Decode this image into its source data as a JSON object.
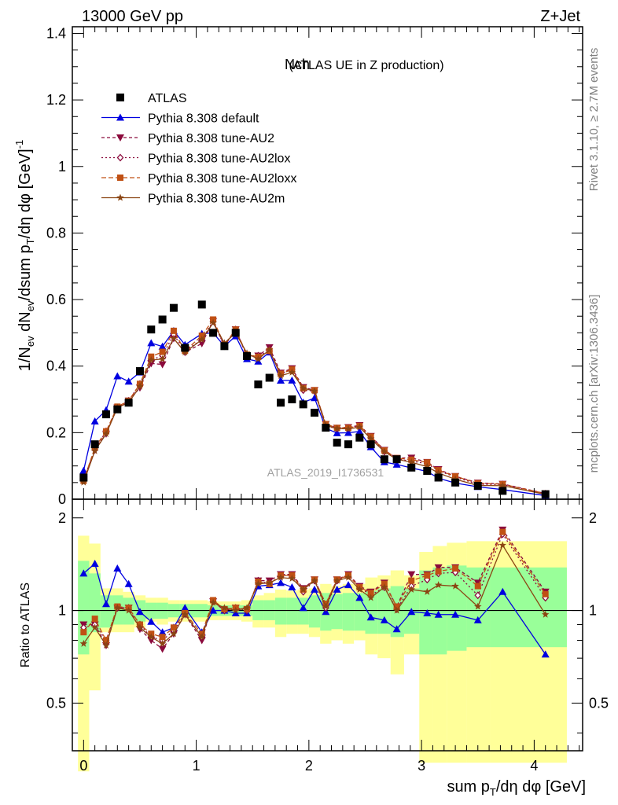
{
  "header": {
    "left": "13000 GeV pp",
    "right": "Z+Jet"
  },
  "side": {
    "top": "Rivet 3.1.10, ≥ 2.7M events",
    "bottom": "mcplots.cern.ch [arXiv:1306.3436]"
  },
  "chart_data": {
    "type": "line",
    "title_main": "Nch",
    "title_sub": "(ATLAS UE in Z production)",
    "watermark": "ATLAS_2019_I1736531",
    "xlim": [
      -0.1,
      4.43
    ],
    "ylim_main": [
      0,
      1.42
    ],
    "ylim_ratio": [
      0.35,
      2.3
    ],
    "x_ticks": [
      "0",
      "1",
      "2",
      "3",
      "4"
    ],
    "y_ticks_main": [
      "0",
      "0.2",
      "0.4",
      "0.6",
      "0.8",
      "1",
      "1.2",
      "1.4"
    ],
    "y_ticks_ratio": [
      "0.5",
      "1",
      "2"
    ],
    "axis": {
      "x_label": "sum p_T/dη dφ [GeV]",
      "x_label_parts": [
        "sum p",
        "T",
        "/dη dφ [GeV]"
      ],
      "y_label_main": "1/N_ev dN_ev/dsum p_T/dη dφ [GeV]^-1",
      "y_label_main_parts": [
        "1/N",
        "ev",
        " dN",
        "ev",
        "/dsum p",
        "T",
        "/dη dφ  [GeV]",
        "-1"
      ],
      "y_label_ratio": "Ratio to ATLAS"
    },
    "x": [
      0,
      0.1,
      0.2,
      0.3,
      0.4,
      0.5,
      0.6,
      0.7,
      0.8,
      0.9,
      1.05,
      1.15,
      1.25,
      1.35,
      1.45,
      1.55,
      1.65,
      1.75,
      1.85,
      1.95,
      2.05,
      2.15,
      2.25,
      2.35,
      2.45,
      2.55,
      2.67,
      2.78,
      2.91,
      3.05,
      3.15,
      3.3,
      3.5,
      3.72,
      4.1
    ],
    "atlas": [
      0.065,
      0.165,
      0.255,
      0.27,
      0.29,
      0.385,
      0.51,
      0.54,
      0.575,
      0.455,
      0.585,
      0.5,
      0.46,
      0.5,
      0.43,
      0.345,
      0.365,
      0.29,
      0.3,
      0.285,
      0.26,
      0.215,
      0.17,
      0.165,
      0.185,
      0.165,
      0.12,
      0.12,
      0.095,
      0.085,
      0.065,
      0.05,
      0.04,
      0.025,
      0.015
    ],
    "series": [
      {
        "name": "Pythia 8.308 default",
        "color": "#0000e0",
        "marker": "triangle",
        "dash": "",
        "ratio": [
          1.32,
          1.42,
          1.05,
          1.37,
          1.22,
          0.99,
          0.92,
          0.85,
          0.88,
          1.02,
          0.85,
          1.0,
          1.0,
          0.98,
          0.98,
          1.2,
          1.21,
          1.23,
          1.19,
          1.02,
          1.17,
          0.99,
          1.17,
          1.21,
          1.1,
          0.95,
          0.93,
          0.87,
          0.99,
          0.98,
          0.97,
          0.97,
          0.93,
          1.15,
          0.72
        ]
      },
      {
        "name": "Pythia 8.308 tune-AU2",
        "color": "#8b0a3c",
        "marker": "triangle-down",
        "dash": "4,3",
        "ratio": [
          0.9,
          0.9,
          0.77,
          1.02,
          1.02,
          0.87,
          0.8,
          0.75,
          0.84,
          0.97,
          0.8,
          1.07,
          1.0,
          1.02,
          1.0,
          1.25,
          1.25,
          1.31,
          1.31,
          1.18,
          1.26,
          1.05,
          1.26,
          1.31,
          1.2,
          1.15,
          1.23,
          1.03,
          1.31,
          1.31,
          1.38,
          1.38,
          1.23,
          1.83,
          1.15
        ]
      },
      {
        "name": "Pythia 8.308 tune-AU2lox",
        "color": "#8b0a3c",
        "marker": "diamond",
        "dash": "2,3",
        "ratio": [
          0.88,
          0.9,
          0.8,
          1.02,
          1.02,
          0.9,
          0.82,
          0.8,
          0.86,
          0.98,
          0.82,
          1.07,
          1.0,
          1.02,
          1.0,
          1.25,
          1.22,
          1.3,
          1.3,
          1.15,
          1.25,
          1.02,
          1.25,
          1.3,
          1.19,
          1.12,
          1.19,
          1.01,
          1.2,
          1.26,
          1.32,
          1.33,
          1.12,
          1.77,
          1.1
        ]
      },
      {
        "name": "Pythia 8.308 tune-AU2loxx",
        "color": "#c05014",
        "marker": "square",
        "dash": "6,3",
        "ratio": [
          0.85,
          0.94,
          0.8,
          1.03,
          1.02,
          0.9,
          0.84,
          0.82,
          0.88,
          0.98,
          0.84,
          1.08,
          1.01,
          1.02,
          1.01,
          1.24,
          1.22,
          1.3,
          1.3,
          1.17,
          1.26,
          1.05,
          1.26,
          1.3,
          1.19,
          1.14,
          1.22,
          1.03,
          1.25,
          1.3,
          1.34,
          1.37,
          1.2,
          1.8,
          1.13
        ]
      },
      {
        "name": "Pythia 8.308 tune-AU2m",
        "color": "#8b4513",
        "marker": "star",
        "dash": "",
        "ratio": [
          0.78,
          0.88,
          0.77,
          1.02,
          1.0,
          0.88,
          0.82,
          0.78,
          0.84,
          0.97,
          0.82,
          1.06,
          1.02,
          1.0,
          1.02,
          1.22,
          1.23,
          1.28,
          1.27,
          1.17,
          1.25,
          1.03,
          1.25,
          1.28,
          1.17,
          1.1,
          1.19,
          1.0,
          1.17,
          1.15,
          1.21,
          1.2,
          1.03,
          1.63,
          0.97
        ]
      }
    ],
    "atlas_style": {
      "color": "#000000",
      "marker": "square"
    },
    "ratio_band_total": [
      [
        0.3,
        1.75
      ],
      [
        0.55,
        1.65
      ],
      [
        0.85,
        1.18
      ],
      [
        0.85,
        1.18
      ],
      [
        0.85,
        1.15
      ],
      [
        0.88,
        1.12
      ],
      [
        0.92,
        1.1
      ],
      [
        0.9,
        1.1
      ],
      [
        0.92,
        1.08
      ],
      [
        0.92,
        1.08
      ],
      [
        0.92,
        1.08
      ],
      [
        0.93,
        1.07
      ],
      [
        0.93,
        1.07
      ],
      [
        0.93,
        1.07
      ],
      [
        0.92,
        1.08
      ],
      [
        0.88,
        1.12
      ],
      [
        0.88,
        1.14
      ],
      [
        0.82,
        1.17
      ],
      [
        0.84,
        1.16
      ],
      [
        0.84,
        1.17
      ],
      [
        0.82,
        1.18
      ],
      [
        0.78,
        1.22
      ],
      [
        0.8,
        1.2
      ],
      [
        0.78,
        1.22
      ],
      [
        0.8,
        1.22
      ],
      [
        0.72,
        1.28
      ],
      [
        0.7,
        1.3
      ],
      [
        0.62,
        1.35
      ],
      [
        0.72,
        1.3
      ],
      [
        0.32,
        1.55
      ],
      [
        0.32,
        1.62
      ],
      [
        0.32,
        1.66
      ],
      [
        0.32,
        1.68
      ],
      [
        0.32,
        1.68
      ],
      [
        0.32,
        1.68
      ]
    ],
    "ratio_band_stat": [
      [
        0.72,
        1.45
      ],
      [
        0.85,
        1.32
      ],
      [
        0.88,
        1.12
      ],
      [
        0.9,
        1.12
      ],
      [
        0.9,
        1.1
      ],
      [
        0.92,
        1.08
      ],
      [
        0.94,
        1.06
      ],
      [
        0.94,
        1.06
      ],
      [
        0.95,
        1.05
      ],
      [
        0.95,
        1.05
      ],
      [
        0.95,
        1.05
      ],
      [
        0.96,
        1.04
      ],
      [
        0.96,
        1.04
      ],
      [
        0.96,
        1.04
      ],
      [
        0.96,
        1.04
      ],
      [
        0.93,
        1.08
      ],
      [
        0.93,
        1.08
      ],
      [
        0.9,
        1.1
      ],
      [
        0.9,
        1.1
      ],
      [
        0.9,
        1.1
      ],
      [
        0.88,
        1.12
      ],
      [
        0.86,
        1.14
      ],
      [
        0.87,
        1.13
      ],
      [
        0.86,
        1.14
      ],
      [
        0.86,
        1.14
      ],
      [
        0.84,
        1.16
      ],
      [
        0.84,
        1.18
      ],
      [
        0.82,
        1.2
      ],
      [
        0.84,
        1.18
      ],
      [
        0.72,
        1.35
      ],
      [
        0.72,
        1.38
      ],
      [
        0.74,
        1.4
      ],
      [
        0.76,
        1.38
      ],
      [
        0.76,
        1.38
      ],
      [
        0.76,
        1.38
      ]
    ],
    "legend_position": "top-left"
  }
}
